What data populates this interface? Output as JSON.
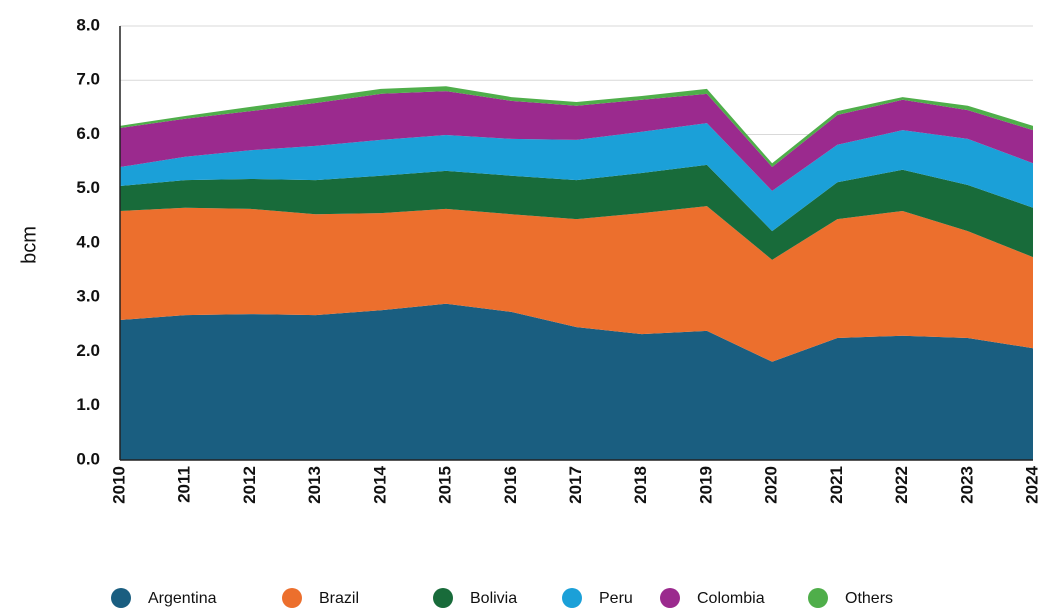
{
  "chart_data": {
    "type": "stacked_area",
    "ylabel": "bcm",
    "categories": [
      "2010",
      "2011",
      "2012",
      "2013",
      "2014",
      "2015",
      "2016",
      "2017",
      "2018",
      "2019",
      "2020",
      "2021",
      "2022",
      "2023",
      "2024"
    ],
    "series": [
      {
        "name": "Argentina",
        "color": "#1a5e80",
        "values": [
          2.58,
          2.67,
          2.69,
          2.67,
          2.76,
          2.88,
          2.73,
          2.45,
          2.32,
          2.38,
          1.81,
          2.25,
          2.29,
          2.25,
          2.06
        ]
      },
      {
        "name": "Brazil",
        "color": "#ec6f2d",
        "values": [
          2.01,
          1.98,
          1.94,
          1.86,
          1.79,
          1.75,
          1.8,
          1.99,
          2.23,
          2.3,
          1.88,
          2.19,
          2.3,
          1.97,
          1.68
        ]
      },
      {
        "name": "Bolivia",
        "color": "#186b3a",
        "values": [
          0.46,
          0.51,
          0.55,
          0.63,
          0.69,
          0.7,
          0.71,
          0.72,
          0.74,
          0.76,
          0.53,
          0.68,
          0.76,
          0.85,
          0.91
        ]
      },
      {
        "name": "Peru",
        "color": "#1ba0d8",
        "values": [
          0.35,
          0.43,
          0.53,
          0.63,
          0.66,
          0.66,
          0.68,
          0.74,
          0.76,
          0.77,
          0.74,
          0.69,
          0.73,
          0.85,
          0.82
        ]
      },
      {
        "name": "Colombia",
        "color": "#9b2a8e",
        "values": [
          0.72,
          0.7,
          0.72,
          0.79,
          0.85,
          0.81,
          0.7,
          0.63,
          0.59,
          0.54,
          0.44,
          0.55,
          0.56,
          0.53,
          0.61
        ]
      },
      {
        "name": "Others",
        "color": "#4fae4a",
        "values": [
          0.04,
          0.05,
          0.08,
          0.09,
          0.09,
          0.09,
          0.07,
          0.07,
          0.07,
          0.09,
          0.07,
          0.07,
          0.05,
          0.08,
          0.08
        ]
      }
    ],
    "ylim": [
      0,
      8
    ],
    "yticks": [
      {
        "value": 0,
        "label": "0.0"
      },
      {
        "value": 1,
        "label": "1.0"
      },
      {
        "value": 2,
        "label": "2.0"
      },
      {
        "value": 3,
        "label": "3.0"
      },
      {
        "value": 4,
        "label": "4.0"
      },
      {
        "value": 5,
        "label": "5.0"
      },
      {
        "value": 6,
        "label": "6.0"
      },
      {
        "value": 7,
        "label": "7.0"
      },
      {
        "value": 8,
        "label": "8.0"
      }
    ],
    "grid": true,
    "legend": "bottom"
  }
}
